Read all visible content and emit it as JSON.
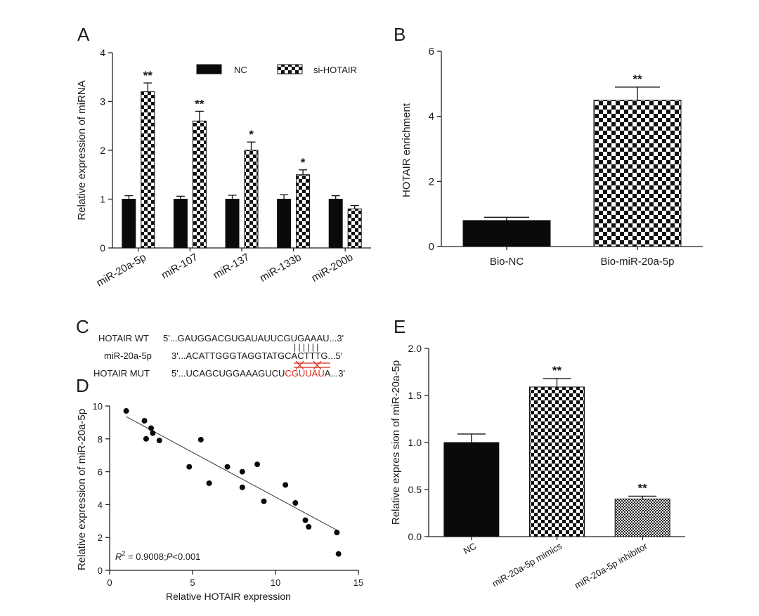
{
  "panels": {
    "a": "A",
    "b": "B",
    "c": "C",
    "d": "D",
    "e": "E"
  },
  "chart_data": [
    {
      "panel": "A",
      "type": "bar",
      "ylabel": "Relative expression of  miRNA",
      "ylim": [
        0,
        4
      ],
      "yticks": [
        "0",
        "1",
        "2",
        "3",
        "4"
      ],
      "categories": [
        "miR-20a-5p",
        "miR-107",
        "miR-137",
        "miR-133b",
        "miR-200b"
      ],
      "series": [
        {
          "name": "NC",
          "values": [
            1.0,
            1.0,
            1.0,
            1.0,
            1.0
          ],
          "errors": [
            0.07,
            0.06,
            0.08,
            0.09,
            0.07
          ],
          "fill": "solid",
          "color": "#0a0a0a"
        },
        {
          "name": "si-HOTAIR",
          "values": [
            3.2,
            2.6,
            2.0,
            1.5,
            0.8
          ],
          "errors": [
            0.18,
            0.2,
            0.17,
            0.1,
            0.07
          ],
          "fill": "checker",
          "color": "#0a0a0a"
        }
      ],
      "significance": [
        "**",
        "**",
        "*",
        "*",
        ""
      ],
      "legend_position": "top"
    },
    {
      "panel": "B",
      "type": "bar",
      "ylabel": "HOTAIR enrichment",
      "ylim": [
        0,
        6
      ],
      "yticks": [
        "0",
        "2",
        "4",
        "6"
      ],
      "categories": [
        "Bio-NC",
        "Bio-miR-20a-5p"
      ],
      "values": [
        0.8,
        4.5
      ],
      "errors": [
        0.1,
        0.4
      ],
      "fills": [
        "solid",
        "checker"
      ],
      "significance": [
        "",
        "**"
      ]
    },
    {
      "panel": "D",
      "type": "scatter",
      "xlabel": "Relative HOTAIR expression",
      "ylabel": "Relative expression of miR-20a-5p",
      "xlim": [
        0,
        15
      ],
      "ylim": [
        0,
        10
      ],
      "xticks": [
        "0",
        "5",
        "10",
        "15"
      ],
      "yticks": [
        "0",
        "2",
        "4",
        "6",
        "8",
        "10"
      ],
      "points": [
        [
          1.0,
          9.7
        ],
        [
          2.1,
          9.1
        ],
        [
          2.5,
          8.65
        ],
        [
          2.6,
          8.35
        ],
        [
          2.2,
          8.0
        ],
        [
          3.0,
          7.9
        ],
        [
          5.5,
          7.95
        ],
        [
          4.8,
          6.3
        ],
        [
          6.0,
          5.3
        ],
        [
          7.1,
          6.3
        ],
        [
          8.0,
          6.0
        ],
        [
          8.9,
          6.45
        ],
        [
          8.0,
          5.05
        ],
        [
          9.3,
          4.2
        ],
        [
          10.6,
          5.2
        ],
        [
          11.2,
          4.1
        ],
        [
          11.8,
          3.05
        ],
        [
          12.0,
          2.65
        ],
        [
          13.7,
          2.3
        ],
        [
          13.8,
          1.0
        ]
      ],
      "fit": {
        "x": [
          1.0,
          13.7
        ],
        "y": [
          9.35,
          2.45
        ]
      },
      "annotation_r": "R",
      "annotation_sup": "2",
      "annotation_rest": " = 0.9008;",
      "annotation_p": "P",
      "annotation_tail": "<0.001"
    },
    {
      "panel": "E",
      "type": "bar",
      "ylabel": "Relative expres sion of miR-20a-5p",
      "ylim": [
        0,
        2.0
      ],
      "yticks": [
        "0.0",
        "0.5",
        "1.0",
        "1.5",
        "2.0"
      ],
      "categories": [
        "NC",
        "miR-20a-5p mimics",
        "miR-20a-5p inhibitor"
      ],
      "values": [
        1.0,
        1.59,
        0.4
      ],
      "errors": [
        0.09,
        0.09,
        0.03
      ],
      "fills": [
        "solid",
        "checker",
        "fine"
      ],
      "significance": [
        "",
        "**",
        "**"
      ]
    }
  ],
  "sequences": {
    "wt_label": "HOTAIR WT",
    "mir_label": "miR-20a-5p",
    "mut_label": "HOTAIR MUT",
    "wt_seq": "5'...GAUGGACGUGAUAUUCGUGAAAU...3'",
    "mir_seq": "3'...ACATTGGGTAGGTATGCACTTTG...5'",
    "mut_prefix": "5'...UCAGCUGGAAAGUCU",
    "mut_red": "CGUUAU",
    "mut_suffix": "A...3'",
    "pairing": "| | | | | |",
    "mut_color": "#d62a1a"
  }
}
